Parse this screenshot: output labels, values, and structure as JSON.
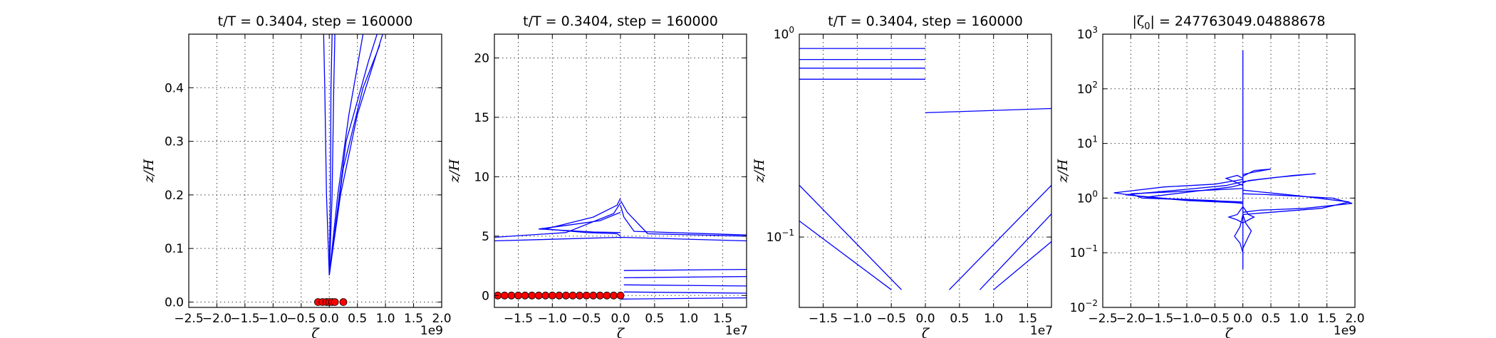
{
  "chart_data": [
    {
      "type": "line",
      "title": "t/T = 0.3404, step = 160000",
      "xlabel": "ζ",
      "ylabel": "z/H",
      "x_offset_label": "1e9",
      "xlim": [
        -2.5,
        2.0
      ],
      "ylim": [
        -0.01,
        0.5
      ],
      "x_ticks": [
        -2.5,
        -2.0,
        -1.5,
        -1.0,
        -0.5,
        0.0,
        0.5,
        1.0,
        1.5,
        2.0
      ],
      "x_ticklabels": [
        "−2.5",
        "−2.0",
        "−1.5",
        "−1.0",
        "−0.5",
        "0.0",
        "0.5",
        "1.0",
        "1.5",
        "2.0"
      ],
      "y_ticks": [
        0.0,
        0.1,
        0.2,
        0.3,
        0.4
      ],
      "y_ticklabels": [
        "0.0",
        "0.1",
        "0.2",
        "0.3",
        "0.4"
      ],
      "y_scale": "linear",
      "grid": true,
      "series": [
        {
          "x": [
            0.0,
            -0.05,
            -0.08,
            -0.1
          ],
          "y": [
            0.05,
            0.2,
            0.4,
            0.5
          ]
        },
        {
          "x": [
            0.0,
            0.02,
            0.03,
            0.05
          ],
          "y": [
            0.05,
            0.2,
            0.4,
            0.5
          ]
        },
        {
          "x": [
            0.0,
            0.05,
            0.08,
            0.1
          ],
          "y": [
            0.05,
            0.2,
            0.4,
            0.5
          ]
        },
        {
          "x": [
            0.0,
            0.15,
            0.35,
            0.6
          ],
          "y": [
            0.05,
            0.2,
            0.35,
            0.5
          ]
        },
        {
          "x": [
            0.0,
            0.2,
            0.5,
            0.95
          ],
          "y": [
            0.05,
            0.2,
            0.35,
            0.5
          ]
        },
        {
          "x": [
            0.0,
            0.25,
            0.6,
            0.9
          ],
          "y": [
            0.05,
            0.25,
            0.4,
            0.48
          ]
        },
        {
          "x": [
            0.0,
            0.3,
            0.7,
            0.85
          ],
          "y": [
            0.05,
            0.3,
            0.45,
            0.5
          ]
        }
      ],
      "markers": {
        "x": [
          -0.2,
          -0.12,
          -0.05,
          0.0,
          0.05,
          0.1,
          0.25
        ],
        "y": [
          0.0,
          0.0,
          0.0,
          0.0,
          0.0,
          0.0,
          0.0
        ]
      }
    },
    {
      "type": "line",
      "title": "t/T = 0.3404, step = 160000",
      "xlabel": "ζ",
      "ylabel": "z/H",
      "x_offset_label": "1e7",
      "xlim": [
        -1.85,
        1.85
      ],
      "ylim": [
        -1,
        22
      ],
      "x_ticks": [
        -1.5,
        -1.0,
        -0.5,
        0.0,
        0.5,
        1.0,
        1.5
      ],
      "x_ticklabels": [
        "−1.5",
        "−1.0",
        "−0.5",
        "0.0",
        "0.5",
        "1.0",
        "1.5"
      ],
      "y_ticks": [
        0,
        5,
        10,
        15,
        20
      ],
      "y_ticklabels": [
        "0",
        "5",
        "10",
        "15",
        "20"
      ],
      "y_scale": "linear",
      "grid": true,
      "series": [
        {
          "x": [
            0.0,
            -0.05,
            -0.4,
            -1.1,
            -0.5,
            -0.05,
            0.0
          ],
          "y": [
            8.2,
            7.6,
            6.6,
            5.6,
            5.3,
            5.2,
            5.0
          ]
        },
        {
          "x": [
            0.0,
            -0.1,
            -0.8,
            -1.85
          ],
          "y": [
            7.8,
            6.9,
            5.3,
            4.9
          ]
        },
        {
          "x": [
            0.0,
            0.1,
            0.3,
            0.4,
            1.85
          ],
          "y": [
            8.0,
            7.0,
            5.8,
            5.2,
            5.0
          ]
        },
        {
          "x": [
            0.0,
            0.05,
            0.2,
            1.85
          ],
          "y": [
            7.6,
            6.6,
            5.4,
            5.1
          ]
        },
        {
          "x": [
            0.0,
            -0.3,
            -0.8,
            -1.2,
            -0.4,
            0.0
          ],
          "y": [
            7.0,
            6.3,
            5.9,
            5.6,
            5.35,
            5.3
          ]
        },
        {
          "x": [
            -1.85,
            0.0,
            1.85
          ],
          "y": [
            4.6,
            4.9,
            4.6
          ]
        },
        {
          "x": [
            0.05,
            1.85
          ],
          "y": [
            2.1,
            2.2
          ]
        },
        {
          "x": [
            0.05,
            1.85
          ],
          "y": [
            1.5,
            1.6
          ]
        },
        {
          "x": [
            0.05,
            1.85
          ],
          "y": [
            0.9,
            0.8
          ]
        },
        {
          "x": [
            0.05,
            1.85
          ],
          "y": [
            0.3,
            0.2
          ]
        },
        {
          "x": [
            0.0,
            1.85
          ],
          "y": [
            -0.3,
            -0.2
          ]
        }
      ],
      "markers": {
        "x": [
          -1.8,
          -1.7,
          -1.6,
          -1.5,
          -1.4,
          -1.3,
          -1.2,
          -1.1,
          -1.0,
          -0.9,
          -0.8,
          -0.7,
          -0.6,
          -0.5,
          -0.4,
          -0.3,
          -0.2,
          -0.1,
          0.0
        ],
        "y": [
          0,
          0,
          0,
          0,
          0,
          0,
          0,
          0,
          0,
          0,
          0,
          0,
          0,
          0,
          0,
          0,
          0,
          0,
          0
        ]
      }
    },
    {
      "type": "line",
      "title": "t/T = 0.3404, step = 160000",
      "xlabel": "ζ",
      "ylabel": "z/H",
      "x_offset_label": "1e7",
      "xlim": [
        -1.85,
        1.85
      ],
      "ylim": [
        0.045,
        1.0
      ],
      "x_ticks": [
        -1.5,
        -1.0,
        -0.5,
        0.0,
        0.5,
        1.0,
        1.5
      ],
      "x_ticklabels": [
        "−1.5",
        "−1.0",
        "−0.5",
        "0.0",
        "0.5",
        "1.0",
        "1.5"
      ],
      "y_ticks": [
        0.1,
        1.0
      ],
      "y_ticklabels_base": [
        "10",
        "10"
      ],
      "y_ticklabels_exp": [
        "−1",
        "0"
      ],
      "y_scale": "log",
      "grid": true,
      "series": [
        {
          "x": [
            -1.85,
            0.0
          ],
          "y": [
            0.85,
            0.85
          ]
        },
        {
          "x": [
            -1.85,
            0.0
          ],
          "y": [
            0.75,
            0.75
          ]
        },
        {
          "x": [
            -1.85,
            0.0
          ],
          "y": [
            0.68,
            0.68
          ]
        },
        {
          "x": [
            -1.85,
            0.0
          ],
          "y": [
            0.6,
            0.6
          ]
        },
        {
          "x": [
            0.0,
            1.85
          ],
          "y": [
            0.41,
            0.43
          ]
        },
        {
          "x": [
            -1.85,
            -0.5
          ],
          "y": [
            0.12,
            0.055
          ]
        },
        {
          "x": [
            -1.85,
            -0.35
          ],
          "y": [
            0.18,
            0.055
          ]
        },
        {
          "x": [
            0.35,
            1.85
          ],
          "y": [
            0.055,
            0.18
          ]
        },
        {
          "x": [
            0.8,
            1.85
          ],
          "y": [
            0.055,
            0.13
          ]
        },
        {
          "x": [
            1.0,
            1.85
          ],
          "y": [
            0.055,
            0.095
          ]
        }
      ]
    },
    {
      "type": "line",
      "title": "|ζ0| = 247763049.04888678",
      "title_parts": {
        "pre": "|ζ",
        "sub": "0",
        "post": "| = 247763049.04888678"
      },
      "xlabel": "ζ",
      "ylabel": "z/H",
      "x_offset_label": "1e9",
      "xlim": [
        -2.5,
        2.0
      ],
      "ylim": [
        0.01,
        1000
      ],
      "x_ticks": [
        -2.5,
        -2.0,
        -1.5,
        -1.0,
        -0.5,
        0.0,
        0.5,
        1.0,
        1.5,
        2.0
      ],
      "x_ticklabels": [
        "−2.5",
        "−2.0",
        "−1.5",
        "−1.0",
        "−0.5",
        "0.0",
        "0.5",
        "1.0",
        "1.5",
        "2.0"
      ],
      "y_ticks": [
        0.01,
        0.1,
        1,
        10,
        100,
        1000
      ],
      "y_ticklabels_base": [
        "10",
        "10",
        "10",
        "10",
        "10",
        "10"
      ],
      "y_ticklabels_exp": [
        "−2",
        "−1",
        "0",
        "1",
        "2",
        "3"
      ],
      "y_scale": "log",
      "grid": true,
      "series": [
        {
          "x": [
            0.0,
            0.0
          ],
          "y": [
            0.05,
            500
          ]
        },
        {
          "x": [
            0.0,
            -0.5,
            -1.4,
            -2.3,
            -1.6,
            -0.5,
            0.0
          ],
          "y": [
            2.2,
            1.8,
            1.6,
            1.25,
            1.0,
            0.9,
            0.8
          ]
        },
        {
          "x": [
            0.0,
            -0.3,
            -1.0,
            -2.1,
            -1.2,
            -0.2,
            0.0
          ],
          "y": [
            2.0,
            1.7,
            1.45,
            1.15,
            0.95,
            0.85,
            0.8
          ]
        },
        {
          "x": [
            0.0,
            -0.2,
            -0.8,
            -1.7,
            -1.0,
            -0.1,
            0.0
          ],
          "y": [
            1.8,
            1.6,
            1.35,
            1.05,
            0.9,
            0.82,
            0.8
          ]
        },
        {
          "x": [
            0.0,
            -0.6,
            -2.0,
            -1.8,
            -0.6,
            0.0
          ],
          "y": [
            1.5,
            1.4,
            1.2,
            1.0,
            0.9,
            0.85
          ]
        },
        {
          "x": [
            0.0,
            0.3,
            1.0,
            1.9,
            1.4,
            0.5,
            0.0
          ],
          "y": [
            1.4,
            1.3,
            1.1,
            0.85,
            0.65,
            0.55,
            0.5
          ]
        },
        {
          "x": [
            0.0,
            0.5,
            1.6,
            1.95,
            1.1,
            0.3,
            0.0
          ],
          "y": [
            1.2,
            1.15,
            1.0,
            0.8,
            0.65,
            0.6,
            0.55
          ]
        },
        {
          "x": [
            0.0,
            0.3,
            0.9,
            1.3,
            0.6,
            0.1,
            0.0
          ],
          "y": [
            2.0,
            2.2,
            2.6,
            2.8,
            2.4,
            2.1,
            1.9
          ]
        },
        {
          "x": [
            0.0,
            0.2,
            0.5,
            0.2,
            0.0
          ],
          "y": [
            2.5,
            3.2,
            3.4,
            3.0,
            2.7
          ]
        },
        {
          "x": [
            0.0,
            -0.1,
            -0.3,
            -0.1,
            0.0
          ],
          "y": [
            2.3,
            2.6,
            2.3,
            1.9,
            1.7
          ]
        },
        {
          "x": [
            0.0,
            -0.05,
            -0.15,
            -0.05,
            0.0
          ],
          "y": [
            0.5,
            0.3,
            0.2,
            0.15,
            0.1
          ]
        },
        {
          "x": [
            0.0,
            0.05,
            0.15,
            0.08,
            0.0
          ],
          "y": [
            0.5,
            0.35,
            0.25,
            0.18,
            0.12
          ]
        },
        {
          "x": [
            0.0,
            0.1,
            0.2,
            0.1,
            0.0
          ],
          "y": [
            0.7,
            0.5,
            0.45,
            0.4,
            0.35
          ]
        },
        {
          "x": [
            0.0,
            -0.1,
            -0.25,
            -0.1,
            0.0
          ],
          "y": [
            0.7,
            0.5,
            0.45,
            0.4,
            0.35
          ]
        }
      ]
    }
  ]
}
